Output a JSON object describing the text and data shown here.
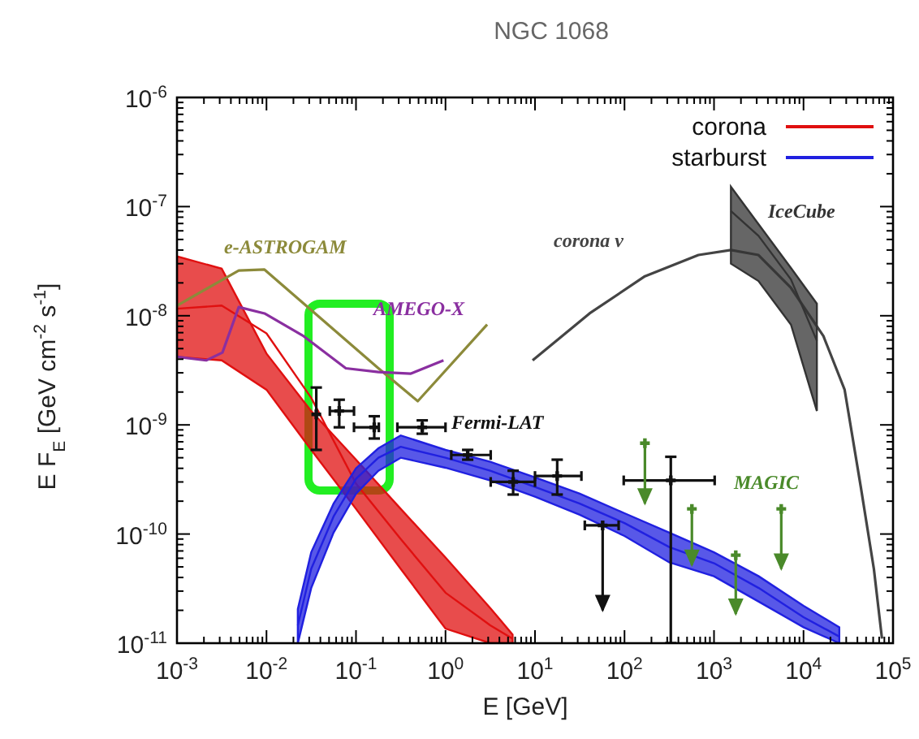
{
  "chart_data": {
    "type": "line",
    "title": "NGC 1068",
    "xlabel": "E [GeV]",
    "ylabel": "E F$_{E}$ [GeV cm$^{-2}$ s$^{-1}$]",
    "log": "xy",
    "xlim": [
      0.001,
      100000
    ],
    "ylim": [
      1e-11,
      1e-06
    ],
    "xticks": [
      {
        "value": 0.001,
        "label": "10$^{-3}$"
      },
      {
        "value": 0.01,
        "label": "10$^{-2}$"
      },
      {
        "value": 0.1,
        "label": "10$^{-1}$"
      },
      {
        "value": 1,
        "label": "10$^{0}$"
      },
      {
        "value": 10,
        "label": "10$^{1}$"
      },
      {
        "value": 100,
        "label": "10$^{2}$"
      },
      {
        "value": 1000,
        "label": "10$^{3}$"
      },
      {
        "value": 10000,
        "label": "10$^{4}$"
      },
      {
        "value": 100000,
        "label": "10$^{5}$"
      },
      {
        "value": 0.002,
        "label": null
      },
      {
        "value": 0.003,
        "label": null
      },
      {
        "value": 0.004,
        "label": null
      },
      {
        "value": 0.005,
        "label": null
      },
      {
        "value": 0.006,
        "label": null
      },
      {
        "value": 0.007,
        "label": null
      },
      {
        "value": 0.008,
        "label": null
      },
      {
        "value": 0.009,
        "label": null
      },
      {
        "value": 0.02,
        "label": null
      },
      {
        "value": 0.03,
        "label": null
      },
      {
        "value": 0.04,
        "label": null
      },
      {
        "value": 0.05,
        "label": null
      },
      {
        "value": 0.06,
        "label": null
      },
      {
        "value": 0.07,
        "label": null
      },
      {
        "value": 0.08,
        "label": null
      },
      {
        "value": 0.09,
        "label": null
      },
      {
        "value": 0.2,
        "label": null
      },
      {
        "value": 0.3,
        "label": null
      },
      {
        "value": 0.4,
        "label": null
      },
      {
        "value": 0.5,
        "label": null
      },
      {
        "value": 0.6,
        "label": null
      },
      {
        "value": 0.7,
        "label": null
      },
      {
        "value": 0.8,
        "label": null
      },
      {
        "value": 0.9,
        "label": null
      },
      {
        "value": 2,
        "label": null
      },
      {
        "value": 3,
        "label": null
      },
      {
        "value": 4,
        "label": null
      },
      {
        "value": 5,
        "label": null
      },
      {
        "value": 6,
        "label": null
      },
      {
        "value": 7,
        "label": null
      },
      {
        "value": 8,
        "label": null
      },
      {
        "value": 9,
        "label": null
      },
      {
        "value": 20,
        "label": null
      },
      {
        "value": 30,
        "label": null
      },
      {
        "value": 40,
        "label": null
      },
      {
        "value": 50,
        "label": null
      },
      {
        "value": 60,
        "label": null
      },
      {
        "value": 70,
        "label": null
      },
      {
        "value": 80,
        "label": null
      },
      {
        "value": 90,
        "label": null
      },
      {
        "value": 200,
        "label": null
      },
      {
        "value": 300,
        "label": null
      },
      {
        "value": 400,
        "label": null
      },
      {
        "value": 500,
        "label": null
      },
      {
        "value": 600,
        "label": null
      },
      {
        "value": 700,
        "label": null
      },
      {
        "value": 800,
        "label": null
      },
      {
        "value": 900,
        "label": null
      },
      {
        "value": 2000,
        "label": null
      },
      {
        "value": 3000,
        "label": null
      },
      {
        "value": 4000,
        "label": null
      },
      {
        "value": 5000,
        "label": null
      },
      {
        "value": 6000,
        "label": null
      },
      {
        "value": 7000,
        "label": null
      },
      {
        "value": 8000,
        "label": null
      },
      {
        "value": 9000,
        "label": null
      },
      {
        "value": 20000,
        "label": null
      },
      {
        "value": 30000,
        "label": null
      },
      {
        "value": 40000,
        "label": null
      },
      {
        "value": 50000,
        "label": null
      },
      {
        "value": 60000,
        "label": null
      },
      {
        "value": 70000,
        "label": null
      },
      {
        "value": 80000,
        "label": null
      },
      {
        "value": 90000,
        "label": null
      }
    ],
    "yticks": [
      {
        "value": 1e-11,
        "label": "10$^{-11}$"
      },
      {
        "value": 1e-10,
        "label": "10$^{-10}$"
      },
      {
        "value": 1e-09,
        "label": "10$^{-9}$"
      },
      {
        "value": 1e-08,
        "label": "10$^{-8}$"
      },
      {
        "value": 1e-07,
        "label": "10$^{-7}$"
      },
      {
        "value": 1e-06,
        "label": "10$^{-6}$"
      },
      {
        "value": 2e-11,
        "label": null
      },
      {
        "value": 3e-11,
        "label": null
      },
      {
        "value": 4e-11,
        "label": null
      },
      {
        "value": 5e-11,
        "label": null
      },
      {
        "value": 6e-11,
        "label": null
      },
      {
        "value": 7e-11,
        "label": null
      },
      {
        "value": 8e-11,
        "label": null
      },
      {
        "value": 9e-11,
        "label": null
      },
      {
        "value": 2e-10,
        "label": null
      },
      {
        "value": 3e-10,
        "label": null
      },
      {
        "value": 4e-10,
        "label": null
      },
      {
        "value": 5e-10,
        "label": null
      },
      {
        "value": 6e-10,
        "label": null
      },
      {
        "value": 7e-10,
        "label": null
      },
      {
        "value": 8e-10,
        "label": null
      },
      {
        "value": 9e-10,
        "label": null
      },
      {
        "value": 2e-09,
        "label": null
      },
      {
        "value": 3e-09,
        "label": null
      },
      {
        "value": 4e-09,
        "label": null
      },
      {
        "value": 5e-09,
        "label": null
      },
      {
        "value": 6e-09,
        "label": null
      },
      {
        "value": 7e-09,
        "label": null
      },
      {
        "value": 8e-09,
        "label": null
      },
      {
        "value": 9e-09,
        "label": null
      },
      {
        "value": 2e-08,
        "label": null
      },
      {
        "value": 3e-08,
        "label": null
      },
      {
        "value": 4e-08,
        "label": null
      },
      {
        "value": 5e-08,
        "label": null
      },
      {
        "value": 6e-08,
        "label": null
      },
      {
        "value": 7e-08,
        "label": null
      },
      {
        "value": 8e-08,
        "label": null
      },
      {
        "value": 9e-08,
        "label": null
      },
      {
        "value": 2e-07,
        "label": null
      },
      {
        "value": 3e-07,
        "label": null
      },
      {
        "value": 4e-07,
        "label": null
      },
      {
        "value": 5e-07,
        "label": null
      },
      {
        "value": 6e-07,
        "label": null
      },
      {
        "value": 7e-07,
        "label": null
      },
      {
        "value": 8e-07,
        "label": null
      },
      {
        "value": 9e-07,
        "label": null
      }
    ],
    "grid": false,
    "legend": "top right",
    "series": [
      {
        "name": "corona",
        "type": "line",
        "color": "#e01010",
        "x": [
          0.001,
          0.00316,
          0.01,
          0.0316,
          0.1,
          0.316,
          1,
          3.16,
          5.62
        ],
        "values": [
          1.16e-08,
          1.24e-08,
          6.9e-09,
          1.77e-09,
          2.9e-10,
          9e-11,
          2.9e-11,
          1.46e-11,
          1.1e-11
        ],
        "upper": [
          3.5e-08,
          2.7e-08,
          4.5e-09,
          1.34e-09,
          4.8e-10,
          1.7e-10,
          6.1e-11,
          2.1e-11,
          1.2e-11
        ],
        "lower": [
          4.2e-09,
          3.9e-09,
          2.1e-09,
          5.9e-10,
          1.7e-10,
          4.8e-11,
          1.36e-11,
          1e-11,
          1e-11
        ]
      },
      {
        "name": "starburst",
        "type": "line",
        "color": "#2020e0",
        "x": [
          0.0224,
          0.0316,
          0.0562,
          0.1,
          0.178,
          0.316,
          1,
          3.16,
          10,
          31.6,
          100,
          316,
          1000,
          3162,
          10000,
          25100
        ],
        "values": [
          1.46e-11,
          4.8e-11,
          1.45e-10,
          3.2e-10,
          5e-10,
          6.3e-10,
          5e-10,
          3.8e-10,
          2.7e-10,
          1.9e-10,
          1.26e-10,
          7.6e-11,
          5.4e-11,
          3.2e-11,
          1.73e-11,
          1.15e-11
        ],
        "upper": [
          2.05e-11,
          6.8e-11,
          1.9e-10,
          4e-10,
          6.1e-10,
          8e-10,
          5.9e-10,
          4.6e-10,
          3.3e-10,
          2.34e-10,
          1.55e-10,
          1.03e-10,
          6.8e-11,
          4.1e-11,
          2.2e-11,
          1.4e-11
        ],
        "lower": [
          1e-11,
          3.2e-11,
          1.03e-10,
          2.34e-10,
          3.8e-10,
          5e-10,
          4.05e-10,
          3.1e-10,
          2.2e-10,
          1.5e-10,
          9.6e-11,
          5.5e-11,
          4.1e-11,
          2.4e-11,
          1.4e-11,
          1e-11
        ]
      },
      {
        "name": "e-ASTROGAM",
        "type": "line",
        "color": "#8c8a3a",
        "x": [
          0.001,
          0.0049,
          0.0095,
          0.178,
          0.49,
          2.92
        ],
        "values": [
          1.24e-08,
          2.6e-08,
          2.65e-08,
          3.3e-09,
          1.65e-09,
          8.3e-09
        ]
      },
      {
        "name": "AMEGO-X",
        "type": "line",
        "color": "#8a2fa0",
        "x": [
          0.001,
          0.00212,
          0.00322,
          0.0049,
          0.0095,
          0.026,
          0.077,
          0.178,
          0.41,
          0.95
        ],
        "values": [
          4.2e-09,
          3.9e-09,
          4.6e-09,
          1.2e-08,
          1.05e-08,
          6.5e-09,
          3.3e-09,
          3.05e-09,
          2.95e-09,
          3.9e-09
        ]
      },
      {
        "name": "corona ν",
        "type": "line",
        "color": "#444444",
        "x": [
          9.4,
          40.7,
          169,
          670,
          1545,
          3140,
          7240,
          16700,
          28800,
          43650,
          61100,
          75300
        ],
        "values": [
          3.9e-09,
          1.05e-08,
          2.3e-08,
          3.6e-08,
          4e-08,
          3.6e-08,
          1.8e-08,
          6.5e-09,
          2.1e-09,
          2.7e-10,
          4.8e-11,
          1.1e-11
        ]
      },
      {
        "name": "IceCube",
        "type": "line",
        "color": "#333333",
        "x": [
          1545,
          3140,
          7240,
          14100
        ],
        "values": [
          9.1e-08,
          5.4e-08,
          2.15e-08,
          5.9e-09
        ],
        "upper": [
          1.52e-07,
          6.9e-08,
          2.74e-08,
          1.29e-08
        ],
        "lower": [
          3e-08,
          2.08e-08,
          8.3e-09,
          1.34e-09
        ]
      },
      {
        "name": "Fermi-LAT",
        "type": "scatter",
        "marker": "cross",
        "color": "#111111",
        "x": [
          0.036,
          0.065,
          0.16,
          0.55,
          1.77,
          5.7,
          17.7,
          329
        ],
        "values": [
          1.25e-09,
          1.34e-09,
          9.5e-10,
          9.5e-10,
          5.3e-10,
          3e-10,
          3.4e-10,
          3.1e-10
        ],
        "errors": [
          [
            5.9e-10,
            2.2e-09
          ],
          [
            9.5e-10,
            1.7e-09
          ],
          [
            7.5e-10,
            1.2e-09
          ],
          [
            8.3e-10,
            1.1e-09
          ],
          [
            4.8e-10,
            5.9e-10
          ],
          [
            2.3e-10,
            3.8e-10
          ],
          [
            2.3e-10,
            4.8e-10
          ],
          [
            1e-11,
            5.1e-10
          ]
        ],
        "xerrors": [
          null,
          [
            0.051,
            0.095
          ],
          [
            0.095,
            0.18
          ],
          [
            0.29,
            1.0
          ],
          [
            1.16,
            3.2
          ],
          [
            3.2,
            10
          ],
          [
            10,
            33
          ],
          [
            98,
            1017
          ]
        ]
      },
      {
        "type": "scatter",
        "marker": "cross",
        "color": "#111111",
        "x": [
          57
        ],
        "values": [
          1.2e-10
        ],
        "errors": [
          [
            2e-11,
            1.2e-10
          ]
        ],
        "xerrors": [
          [
            36,
            86
          ]
        ]
      },
      {
        "name": "MAGIC",
        "type": "scatter",
        "marker": "cross",
        "color": "#4a8a2a",
        "x": [
          169,
          566,
          1750,
          5640
        ],
        "values": [
          6.8e-10,
          1.7e-10,
          6.4e-11,
          1.7e-10
        ],
        "errors": [
          [
            1.9e-10,
            6.8e-10
          ],
          [
            5.2e-11,
            1.7e-10
          ],
          [
            1.85e-11,
            6.4e-11
          ],
          [
            4.8e-11,
            1.7e-10
          ]
        ]
      }
    ]
  }
}
